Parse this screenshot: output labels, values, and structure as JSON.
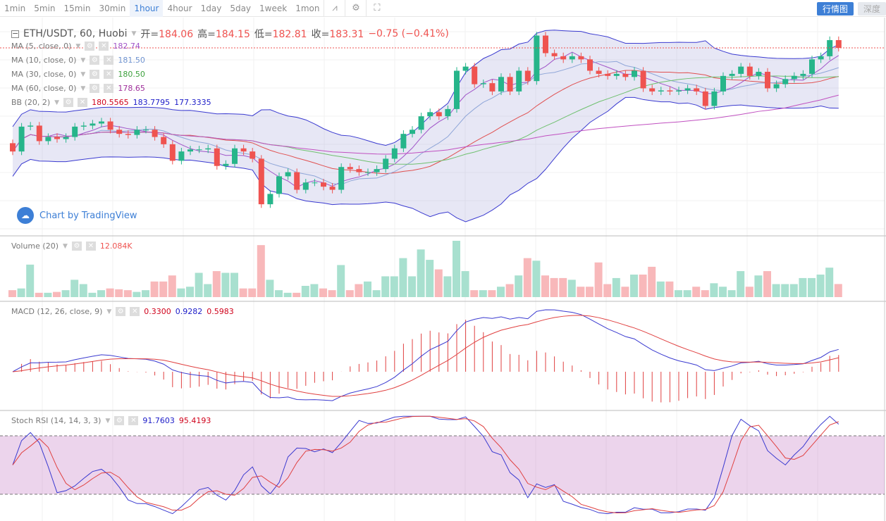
{
  "toolbar": {
    "timeframes": [
      "1min",
      "5min",
      "15min",
      "30min",
      "1hour",
      "4hour",
      "1day",
      "5day",
      "1week",
      "1mon"
    ],
    "active": "1hour",
    "tabs": [
      "行情图",
      "深度"
    ]
  },
  "header": {
    "symbol": "ETH/USDT, 60, Huobi",
    "open_label": "开=",
    "open": "184.06",
    "high_label": "高=",
    "high": "184.15",
    "low_label": "低=",
    "low": "182.81",
    "close_label": "收=",
    "close": "183.31",
    "change": "−0.75 (−0.41%)"
  },
  "indicators": [
    {
      "label": "MA (5, close, 0)",
      "values": [
        "182.74"
      ],
      "colors": [
        "#a054c8"
      ]
    },
    {
      "label": "MA (10, close, 0)",
      "values": [
        "181.50"
      ],
      "colors": [
        "#6f93d0"
      ]
    },
    {
      "label": "MA (30, close, 0)",
      "values": [
        "180.50"
      ],
      "colors": [
        "#3ca03c"
      ]
    },
    {
      "label": "MA (60, close, 0)",
      "values": [
        "178.65"
      ],
      "colors": [
        "#a0309c"
      ]
    },
    {
      "label": "BB (20, 2)",
      "values": [
        "180.5565",
        "183.7795",
        "177.3335"
      ],
      "colors": [
        "#d0021b",
        "#1c1cc8",
        "#1c1cc8"
      ]
    }
  ],
  "volume": {
    "label": "Volume (20)",
    "value": "12.084K"
  },
  "macd": {
    "label": "MACD (12, 26, close, 9)",
    "values": [
      "0.3300",
      "0.9282",
      "0.5983"
    ]
  },
  "stochrsi": {
    "label": "Stoch RSI (14, 14, 3, 3)",
    "values": [
      "91.7603",
      "95.4193"
    ]
  },
  "watermark": "Chart by TradingView",
  "colors": {
    "up": "#26b58a",
    "down": "#ef5350",
    "up_vol": "#a8e0cf",
    "down_vol": "#f8b8ba"
  },
  "chart_data": {
    "type": "candlestick",
    "symbol": "ETH/USDT",
    "interval": "60",
    "close": [
      173.3,
      175.7,
      175.8,
      174.3,
      174.7,
      174.5,
      174.7,
      175.7,
      175.8,
      176.0,
      176.2,
      175.4,
      175.0,
      174.9,
      175.4,
      175.4,
      174.7,
      174.0,
      172.4,
      173.3,
      173.5,
      173.5,
      173.6,
      171.9,
      172.1,
      173.6,
      173.3,
      172.6,
      168.2,
      169.2,
      170.9,
      171.3,
      169.6,
      170.3,
      170.3,
      169.9,
      169.6,
      171.8,
      171.6,
      171.3,
      171.3,
      171.6,
      172.6,
      173.6,
      175.0,
      175.4,
      176.7,
      177.1,
      176.7,
      177.4,
      181.1,
      181.5,
      179.8,
      179.9,
      179.1,
      180.5,
      179.1,
      181.1,
      180.1,
      184.5,
      182.8,
      182.5,
      182.2,
      182.5,
      182.2,
      181.1,
      180.8,
      180.6,
      180.8,
      180.5,
      181.1,
      179.4,
      179.1,
      179.2,
      179.1,
      179.2,
      179.4,
      179.1,
      177.7,
      179.1,
      180.6,
      180.8,
      181.5,
      180.6,
      181.0,
      179.4,
      179.8,
      180.3,
      180.6,
      180.8,
      182.2,
      182.5,
      184.06,
      183.31
    ],
    "volume_k": [
      6.4,
      8,
      30,
      4,
      4,
      4.8,
      6.4,
      16,
      12,
      4,
      6.4,
      8,
      7.2,
      6.4,
      4.8,
      6.4,
      14.4,
      14.4,
      20,
      8,
      9.6,
      22.4,
      12,
      24,
      22.4,
      22.4,
      8,
      8,
      48,
      16,
      6.4,
      4,
      4,
      10.4,
      12,
      8,
      6.4,
      29.6,
      6.4,
      12,
      14.4,
      6.4,
      19.2,
      19.2,
      36,
      19.2,
      44,
      34.4,
      25.6,
      19.2,
      52,
      24,
      6.4,
      6.4,
      6.4,
      9.6,
      12,
      20,
      36,
      33.6,
      20,
      17.6,
      17.6,
      16,
      9.6,
      9.6,
      32,
      12,
      17.6,
      9.6,
      20.8,
      20.8,
      28,
      14.4,
      14.4,
      6.4,
      6.4,
      9.6,
      6.4,
      12.8,
      9.6,
      6.4,
      24,
      9.6,
      20,
      24,
      12,
      12,
      12,
      17.6,
      17.6,
      20.8,
      27.2,
      12.084
    ]
  }
}
